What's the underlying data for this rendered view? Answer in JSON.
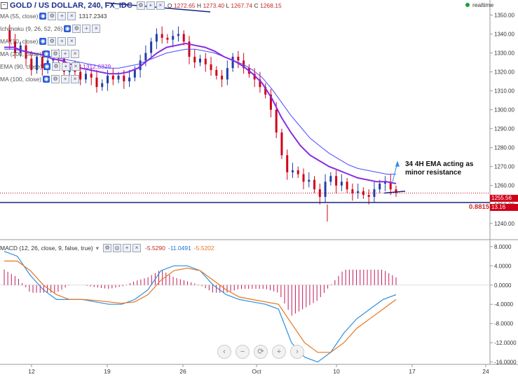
{
  "header": {
    "symbol_title": "GOLD / US DOLLAR, 240, FX_IDC",
    "ohlc": {
      "o_label": "O",
      "o": "1272.65",
      "h_label": "H",
      "h": "1273.40",
      "l_label": "L",
      "l": "1267.74",
      "c_label": "C",
      "c": "1268.15"
    },
    "realtime_label": "realtime"
  },
  "legend": [
    {
      "label": "MA (55, close)",
      "value": "1317.2343",
      "value_color": "#333333"
    },
    {
      "label": "Ichimoku (9, 26, 52, 26)",
      "value": "",
      "value_color": "#333333"
    },
    {
      "label": "MA (10, close)",
      "value": "",
      "value_color": "#333333"
    },
    {
      "label": "MA (200, close)",
      "value": "",
      "value_color": "#333333"
    },
    {
      "label": "EMA (90, close)",
      "value": "1312.6329",
      "value_color": "#8a2be2"
    },
    {
      "label": "MA (100, close)",
      "value": "",
      "value_color": "#333333"
    }
  ],
  "macd_header": {
    "label": "MACD (12, 26, close, 9, false, true)",
    "v1": "-5.5290",
    "v1_color": "#c62828",
    "v2": "-11.0491",
    "v2_color": "#1e6fd6",
    "v3": "-5.5202",
    "v3_color": "#e8731e"
  },
  "annotation": {
    "line1": "34 4H EMA acting as",
    "line2": "minor resistance"
  },
  "fib_label": "0.8815",
  "price_tags": {
    "last": "1255.56",
    "ref": "13.16"
  },
  "nav_controls": [
    "‹",
    "−",
    "⟳",
    "+",
    "›"
  ],
  "colors": {
    "up_candle": "#1e3fa8",
    "down_candle": "#d0021b",
    "ema34": "#8a2be2",
    "ema_other": "#4a4aff",
    "macd_line": "#2d8fe0",
    "signal_line": "#e8731e",
    "histogram": "#c2185b",
    "support_line": "#1a237e"
  },
  "chart_data": [
    {
      "type": "candlestick",
      "title": "GOLD / US DOLLAR, 240, FX_IDC",
      "x_ticks": [
        "12",
        "19",
        "26",
        "Oct",
        "10",
        "17",
        "24"
      ],
      "y_ticks": [
        1240,
        1250,
        1260,
        1270,
        1280,
        1290,
        1300,
        1310,
        1320,
        1330,
        1340,
        1350
      ],
      "ylim": [
        1234,
        1355
      ],
      "ohlc_path": [
        1342,
        1336,
        1330,
        1334,
        1327,
        1321,
        1328,
        1322,
        1326,
        1329,
        1327,
        1320,
        1323,
        1320,
        1316,
        1319,
        1317,
        1312,
        1314,
        1318,
        1316,
        1318,
        1315,
        1317,
        1321,
        1326,
        1330,
        1336,
        1340,
        1338,
        1337,
        1339,
        1340,
        1336,
        1328,
        1325,
        1327,
        1324,
        1321,
        1318,
        1316,
        1322,
        1328,
        1326,
        1322,
        1319,
        1316,
        1312,
        1308,
        1300,
        1288,
        1276,
        1267,
        1268,
        1266,
        1262,
        1263,
        1258,
        1254,
        1262,
        1265,
        1260,
        1262,
        1258,
        1256,
        1257,
        1255,
        1254,
        1258,
        1261,
        1262,
        1258,
        1256
      ],
      "ema34": [
        1333,
        1333,
        1331,
        1330,
        1329,
        1327,
        1326,
        1324,
        1322,
        1321,
        1320,
        1319,
        1319,
        1320,
        1322,
        1326,
        1330,
        1333,
        1334,
        1335,
        1334,
        1333,
        1331,
        1328,
        1326,
        1323,
        1319,
        1314,
        1306,
        1296,
        1288,
        1281,
        1276,
        1273,
        1270,
        1268,
        1266,
        1264,
        1263,
        1262,
        1262,
        1261
      ],
      "ema_outer": [
        1332,
        1332,
        1331,
        1330,
        1329,
        1328,
        1327,
        1326,
        1325,
        1324,
        1323,
        1322,
        1322,
        1323,
        1324,
        1326,
        1328,
        1330,
        1331,
        1332,
        1332,
        1331,
        1330,
        1328,
        1326,
        1324,
        1321,
        1317,
        1311,
        1304,
        1297,
        1291,
        1285,
        1281,
        1277,
        1274,
        1271,
        1269,
        1268,
        1267,
        1266,
        1266
      ],
      "annotation": "34 4H EMA acting as minor resistance",
      "fib_level": {
        "label": "0.8815",
        "value": 1251
      }
    },
    {
      "type": "line",
      "title": "MACD (12, 26, close, 9, false, true)",
      "y_ticks": [
        8,
        4,
        0,
        -4,
        -8,
        -12,
        -16
      ],
      "ylim": [
        -16.5,
        9
      ],
      "series": [
        {
          "name": "MACD",
          "values": [
            7,
            6,
            2,
            -1,
            -3,
            -3,
            -3,
            -3.5,
            -4,
            -4,
            -3,
            -1,
            3,
            4,
            4,
            3,
            0,
            -2,
            -3,
            -3.5,
            -4,
            -5,
            -12,
            -15,
            -16,
            -14,
            -10,
            -7,
            -5,
            -3,
            -2
          ]
        },
        {
          "name": "Signal",
          "values": [
            5,
            5,
            3,
            0,
            -2,
            -3,
            -3,
            -3.2,
            -3.5,
            -3.8,
            -3.5,
            -2,
            1,
            3,
            3.5,
            3,
            1,
            -1,
            -2.5,
            -3,
            -3.5,
            -4,
            -8,
            -12,
            -14,
            -14,
            -12,
            -9,
            -7,
            -5,
            -3
          ]
        }
      ]
    }
  ]
}
